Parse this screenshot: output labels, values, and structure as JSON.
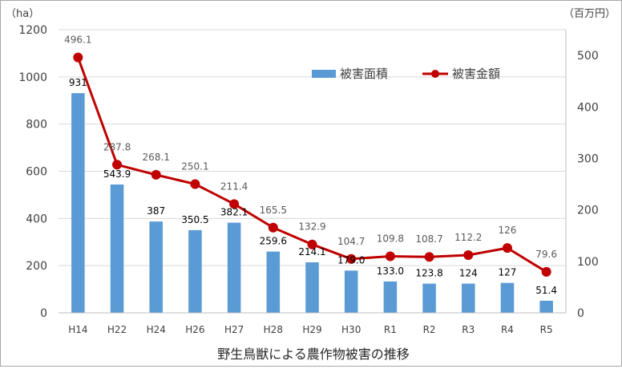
{
  "chart_data": {
    "type": "bar",
    "title": "野生鳥獣による農作物被害の推移",
    "categories": [
      "H14",
      "H22",
      "H24",
      "H26",
      "H27",
      "H28",
      "H29",
      "H30",
      "R1",
      "R2",
      "R3",
      "R4",
      "R5"
    ],
    "series": [
      {
        "name": "被害面積",
        "kind": "bar",
        "axis": "left",
        "color": "#5b9bd5",
        "values": [
          931,
          543.9,
          387,
          350.5,
          382.1,
          259.6,
          214.1,
          179.0,
          133.0,
          123.8,
          124,
          127,
          51.4
        ],
        "labels": [
          "931",
          "543.9",
          "387",
          "350.5",
          "382.1",
          "259.6",
          "214.1",
          "179.0",
          "133.0",
          "123.8",
          "124",
          "127",
          "51.4"
        ]
      },
      {
        "name": "被害金額",
        "kind": "line",
        "axis": "right",
        "color": "#c00000",
        "values": [
          496.1,
          287.8,
          268.1,
          250.1,
          211.4,
          165.5,
          132.9,
          104.7,
          109.8,
          108.7,
          112.2,
          126,
          79.6
        ],
        "labels": [
          "496.1",
          "287.8",
          "268.1",
          "250.1",
          "211.4",
          "165.5",
          "132.9",
          "104.7",
          "109.8",
          "108.7",
          "112.2",
          "126",
          "79.6"
        ]
      }
    ],
    "y_left": {
      "unit": "（ha）",
      "min": 0,
      "max": 1200,
      "ticks": [
        0,
        200,
        400,
        600,
        800,
        1000,
        1200
      ]
    },
    "y_right": {
      "unit": "（百万円）",
      "min": 0,
      "max": 550,
      "ticks": [
        0,
        100,
        200,
        300,
        400,
        500
      ]
    },
    "grid": true,
    "legend_position": "top-right"
  }
}
